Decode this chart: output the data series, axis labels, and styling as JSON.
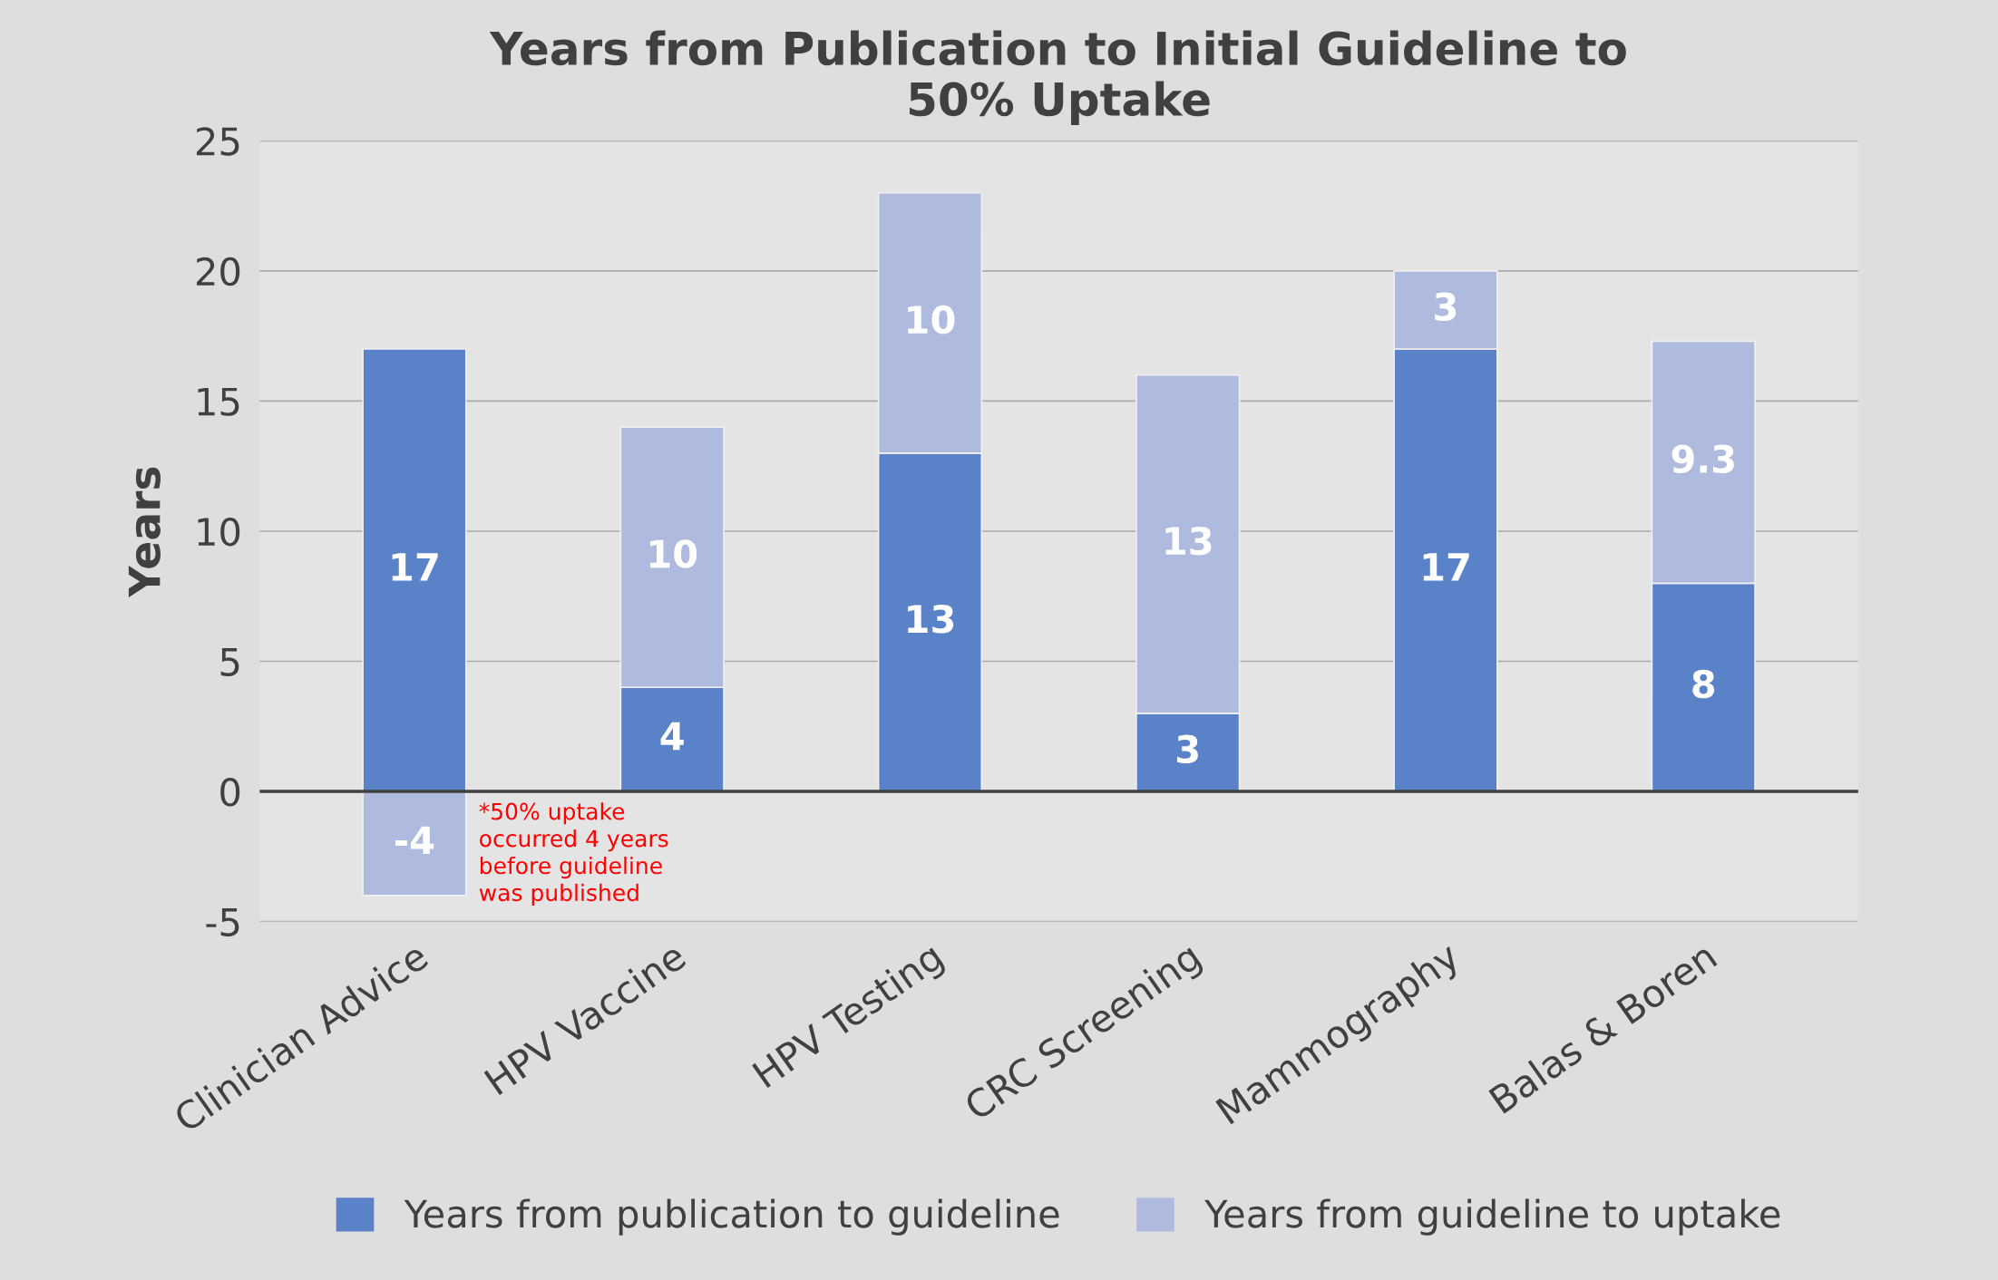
{
  "chart_data": {
    "type": "bar",
    "title": "Years from Publication to Initial Guideline to\n50% Uptake",
    "ylabel": "Years",
    "categories": [
      "Clinician Advice",
      "HPV Vaccine",
      "HPV Testing",
      "CRC Screening",
      "Mammography",
      "Balas & Boren"
    ],
    "series": [
      {
        "name": "Years from publication to guideline",
        "color": "#5a82c8",
        "values": [
          17,
          4,
          13,
          3,
          17,
          8
        ]
      },
      {
        "name": "Years from guideline to uptake",
        "color": "#aebbdf",
        "values": [
          -4,
          10,
          10,
          13,
          3,
          9.3
        ]
      }
    ],
    "stacked": true,
    "data_labels": true,
    "ylim": [
      -5,
      25
    ],
    "yticks": [
      -5,
      0,
      5,
      10,
      15,
      20,
      25
    ],
    "grid": "y",
    "legend": "bottom",
    "annotations": [
      {
        "text": "*50% uptake\noccurred 4 years\nbefore guideline\nwas published",
        "x": "Clinician Advice",
        "y": -4
      }
    ]
  }
}
